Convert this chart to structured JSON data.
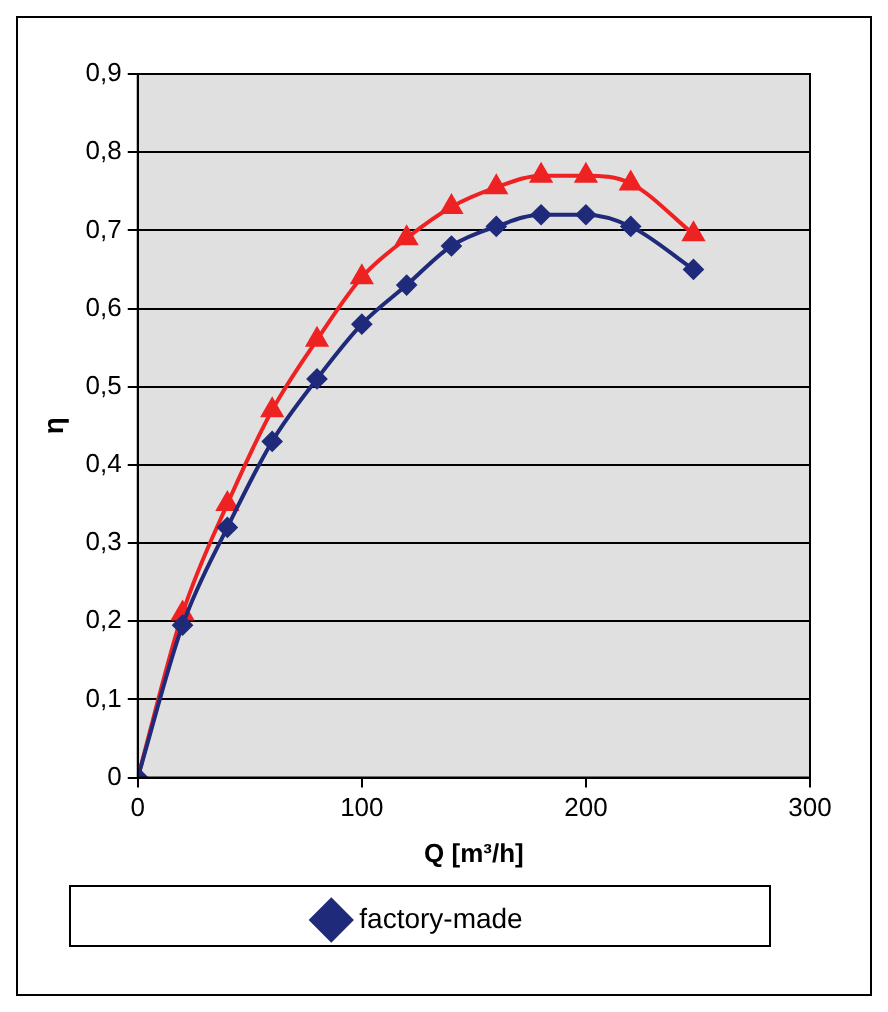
{
  "chart_data": {
    "type": "line",
    "xlabel": "Q [m³/h]",
    "ylabel": "η",
    "xlim": [
      0,
      300
    ],
    "xticks": [
      0,
      100,
      200,
      300
    ],
    "ylim": [
      0,
      0.9
    ],
    "yticks": [
      {
        "value": 0,
        "label": "0"
      },
      {
        "value": 0.1,
        "label": "0,1"
      },
      {
        "value": 0.2,
        "label": "0,2"
      },
      {
        "value": 0.3,
        "label": "0,3"
      },
      {
        "value": 0.4,
        "label": "0,4"
      },
      {
        "value": 0.5,
        "label": "0,5"
      },
      {
        "value": 0.6,
        "label": "0,6"
      },
      {
        "value": 0.7,
        "label": "0,7"
      },
      {
        "value": 0.8,
        "label": "0,8"
      },
      {
        "value": 0.9,
        "label": "0,9"
      }
    ],
    "grid": "y",
    "legend": "bottom",
    "series": [
      {
        "name": "factory-made",
        "color": "#1f2a7a",
        "marker": "diamond",
        "x": [
          0,
          20,
          40,
          60,
          80,
          100,
          120,
          140,
          160,
          180,
          200,
          220,
          248
        ],
        "values": [
          0,
          0.195,
          0.32,
          0.43,
          0.51,
          0.58,
          0.63,
          0.68,
          0.705,
          0.72,
          0.72,
          0.705,
          0.65
        ]
      },
      {
        "color": "#ee2222",
        "marker": "triangle",
        "x": [
          0,
          20,
          40,
          60,
          80,
          100,
          120,
          140,
          160,
          180,
          200,
          220,
          248
        ],
        "values": [
          0,
          0.21,
          0.35,
          0.47,
          0.56,
          0.64,
          0.69,
          0.73,
          0.755,
          0.77,
          0.77,
          0.76,
          0.695
        ]
      }
    ]
  }
}
